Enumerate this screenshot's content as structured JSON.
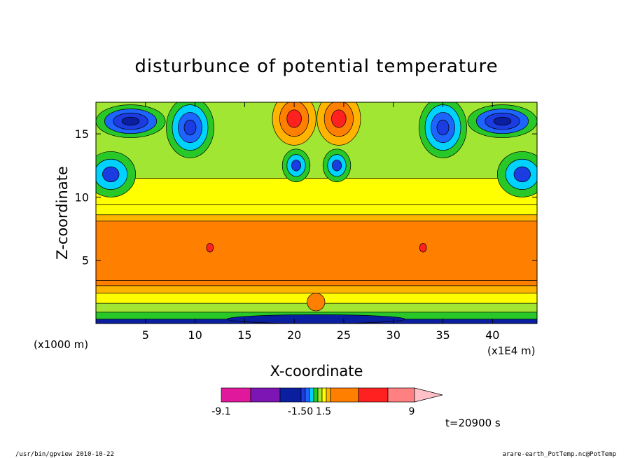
{
  "chart_data": {
    "type": "heatmap",
    "title": "disturbunce of potential temperature",
    "xlabel": "X-coordinate",
    "ylabel": "Z-coordinate",
    "x_unit": "(x1E4 m)",
    "y_unit": "(x1000 m)",
    "xlim": [
      0,
      44.5
    ],
    "ylim": [
      0,
      17.5
    ],
    "x_ticks": [
      5,
      10,
      15,
      20,
      25,
      30,
      35,
      40
    ],
    "y_ticks": [
      5,
      10,
      15
    ],
    "time_label": "t=20900 s",
    "colorbar": {
      "colors": [
        "#e0189c",
        "#7d14b4",
        "#0a1ea0",
        "#1a3ce0",
        "#1e64ff",
        "#00d2ff",
        "#28c828",
        "#a0e632",
        "#ffff00",
        "#ffb400",
        "#ff8000",
        "#ff2020",
        "#ff8080",
        "#ffc0c8"
      ],
      "tick_labels": [
        "-9.1",
        "-1.50",
        "1.5",
        "9"
      ],
      "tick_positions": [
        0,
        6,
        8,
        14
      ]
    },
    "bands": [
      {
        "z0": 0,
        "z1": 0.35,
        "level": 2
      },
      {
        "z0": 0.35,
        "z1": 0.9,
        "level": 6
      },
      {
        "z0": 0.9,
        "z1": 1.6,
        "level": 7
      },
      {
        "z0": 1.6,
        "z1": 2.4,
        "level": 8
      },
      {
        "z0": 2.4,
        "z1": 3.0,
        "level": 9
      },
      {
        "z0": 3.0,
        "z1": 3.4,
        "level": 10
      },
      {
        "z0": 3.4,
        "z1": 8.1,
        "level": 10
      },
      {
        "z0": 8.1,
        "z1": 8.6,
        "level": 9
      },
      {
        "z0": 8.6,
        "z1": 9.4,
        "level": 8
      },
      {
        "z0": 9.4,
        "z1": 11.5,
        "level": 8
      },
      {
        "z0": 11.5,
        "z1": 17.5,
        "level": 7
      }
    ],
    "features": [
      {
        "x": 3.5,
        "z": 16.0,
        "rx": 3.5,
        "rz": 1.3,
        "levels": [
          6,
          4,
          3,
          2
        ]
      },
      {
        "x": 41.0,
        "z": 16.0,
        "rx": 3.5,
        "rz": 1.3,
        "levels": [
          6,
          4,
          3,
          2
        ]
      },
      {
        "x": 9.5,
        "z": 15.5,
        "rx": 2.4,
        "rz": 2.4,
        "levels": [
          6,
          5,
          4,
          3
        ]
      },
      {
        "x": 35.0,
        "z": 15.5,
        "rx": 2.4,
        "rz": 2.4,
        "levels": [
          6,
          5,
          4,
          3
        ]
      },
      {
        "x": 1.5,
        "z": 11.8,
        "rx": 2.5,
        "rz": 1.8,
        "levels": [
          6,
          5,
          3
        ]
      },
      {
        "x": 43.0,
        "z": 11.8,
        "rx": 2.5,
        "rz": 1.8,
        "levels": [
          6,
          5,
          3
        ]
      },
      {
        "x": 20.0,
        "z": 16.2,
        "rx": 2.2,
        "rz": 2.1,
        "levels": [
          9,
          10,
          11
        ]
      },
      {
        "x": 24.5,
        "z": 16.2,
        "rx": 2.2,
        "rz": 2.1,
        "levels": [
          9,
          10,
          11
        ]
      },
      {
        "x": 20.2,
        "z": 12.5,
        "rx": 1.4,
        "rz": 1.3,
        "levels": [
          6,
          5,
          3
        ]
      },
      {
        "x": 24.3,
        "z": 12.5,
        "rx": 1.4,
        "rz": 1.3,
        "levels": [
          6,
          5,
          3
        ]
      },
      {
        "x": 11.5,
        "z": 6.0,
        "rx": 0.35,
        "rz": 0.35,
        "levels": [
          11
        ]
      },
      {
        "x": 33.0,
        "z": 6.0,
        "rx": 0.35,
        "rz": 0.35,
        "levels": [
          11
        ]
      },
      {
        "x": 22.2,
        "z": 1.7,
        "rx": 0.9,
        "rz": 0.7,
        "levels": [
          10
        ]
      },
      {
        "x": 22.2,
        "z": 0.35,
        "rx": 9.0,
        "rz": 0.35,
        "levels": [
          2
        ]
      }
    ]
  },
  "footer": {
    "left": "/usr/bin/gpview   2010-10-22",
    "right": "arare-earth_PotTemp.nc@PotTemp"
  }
}
